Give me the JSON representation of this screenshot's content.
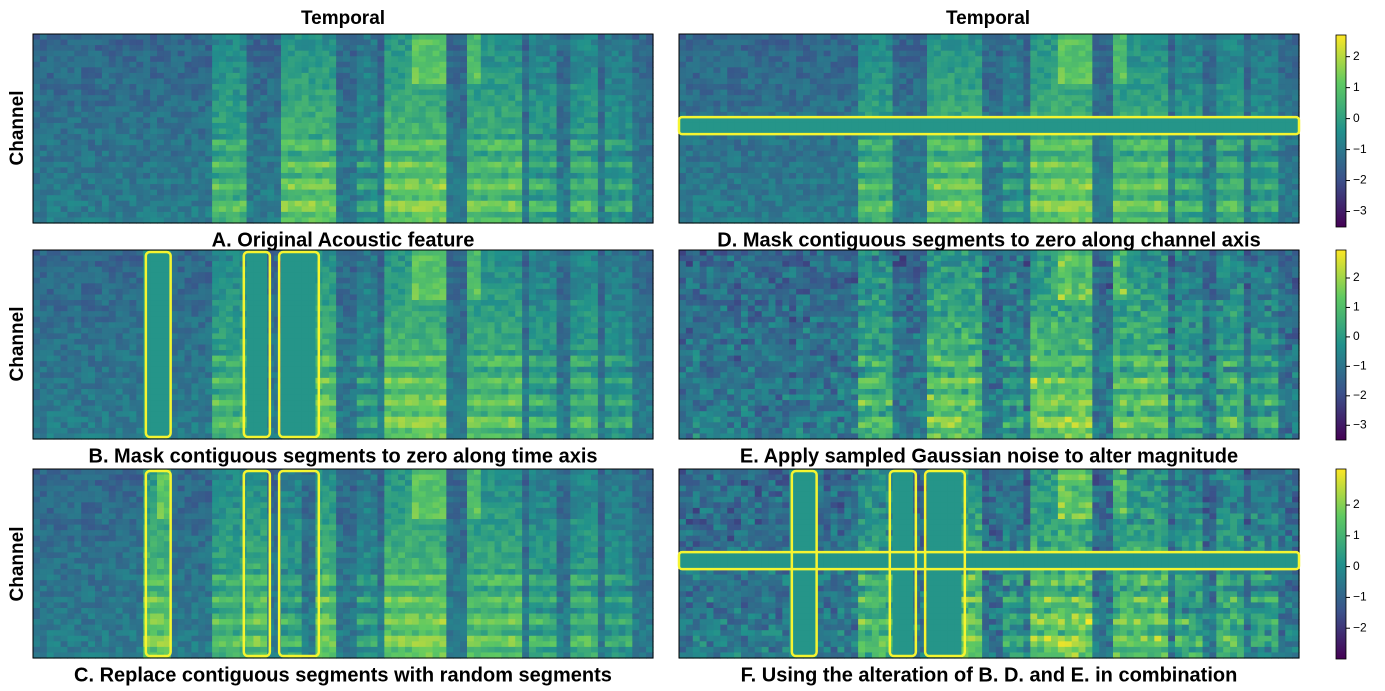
{
  "column_titles": [
    "Temporal",
    "Temporal"
  ],
  "row_labels": [
    "Channel",
    "Channel",
    "Channel"
  ],
  "panels": [
    {
      "caption": "A. Original Acoustic feature"
    },
    {
      "caption": "D. Mask contiguous segments to zero along channel axis"
    },
    {
      "caption": "B. Mask contiguous segments to zero along time axis"
    },
    {
      "caption": "E. Apply sampled Gaussian noise to alter magnitude"
    },
    {
      "caption": "C. Replace contiguous segments with random segments"
    },
    {
      "caption": "F. Using the alteration of B. D. and E. in combination"
    }
  ],
  "colorbars": [
    {
      "range": [
        -3.5,
        2.7
      ],
      "ticks": [
        2,
        1,
        0,
        {
          "value": -1,
          "label": "−1"
        },
        {
          "value": -2,
          "label": "−2"
        },
        {
          "value": -3,
          "label": "−3"
        }
      ]
    },
    {
      "range": [
        -3.5,
        2.95
      ],
      "ticks": [
        2,
        1,
        0,
        {
          "value": -1,
          "label": "−1"
        },
        {
          "value": -2,
          "label": "−2"
        },
        {
          "value": -3,
          "label": "−3"
        }
      ]
    },
    {
      "range": [
        -3.0,
        3.17
      ],
      "ticks": [
        2,
        1,
        0,
        {
          "value": -1,
          "label": "−1"
        },
        {
          "value": -2,
          "label": "−2"
        }
      ]
    }
  ]
}
